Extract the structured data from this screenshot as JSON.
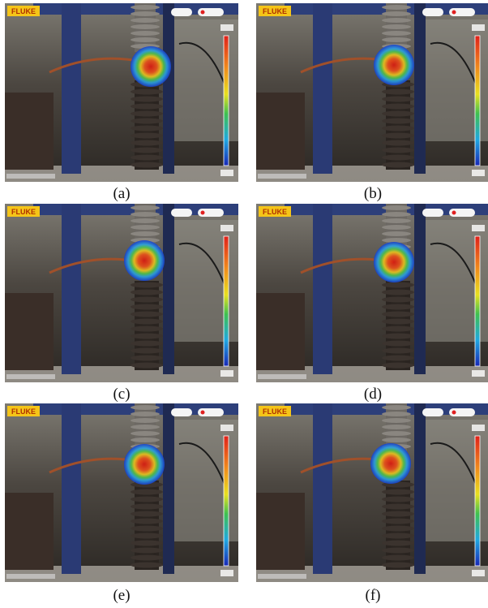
{
  "panels": [
    {
      "brand": "FLUKE",
      "caption": "(a)"
    },
    {
      "brand": "FLUKE",
      "caption": "(b)"
    },
    {
      "brand": "FLUKE",
      "caption": "(c)"
    },
    {
      "brand": "FLUKE",
      "caption": "(d)"
    },
    {
      "brand": "FLUKE",
      "caption": "(e)"
    },
    {
      "brand": "FLUKE",
      "caption": "(f)"
    }
  ]
}
